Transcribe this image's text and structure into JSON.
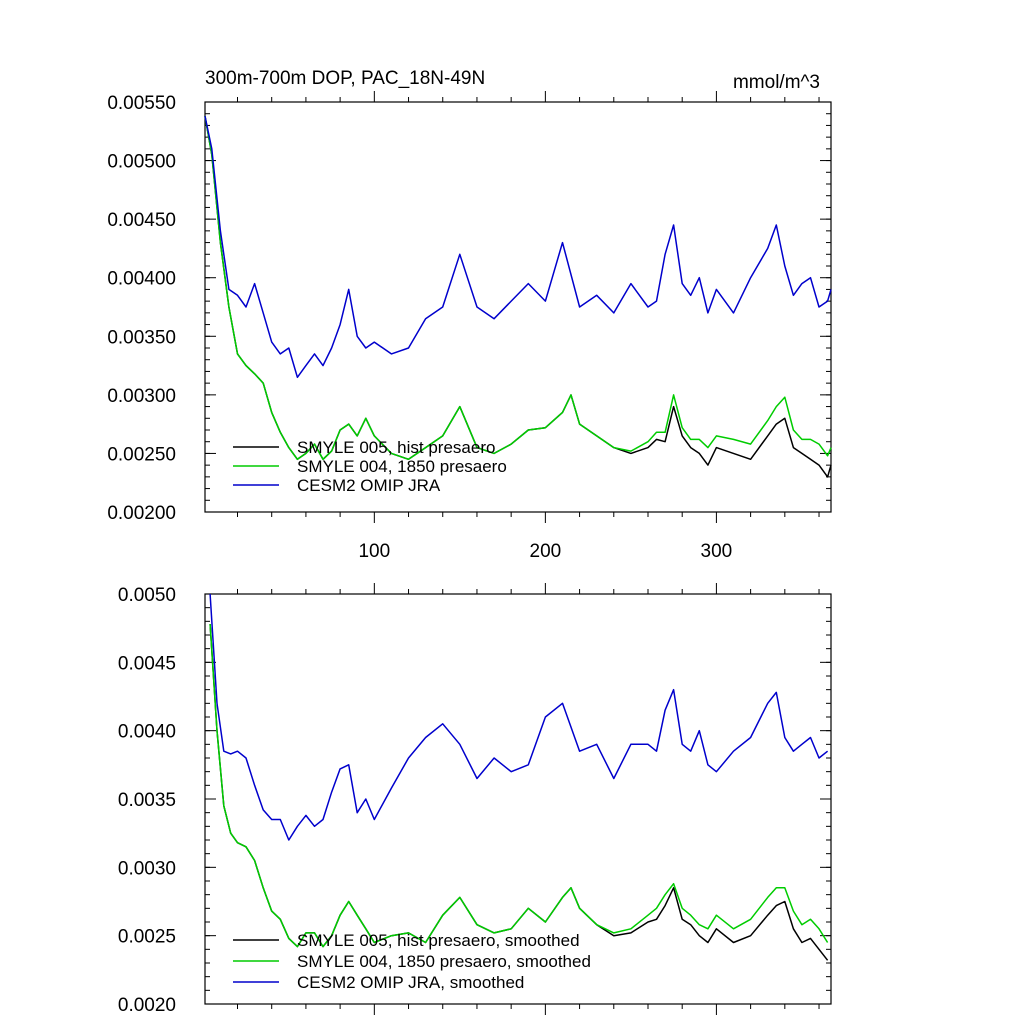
{
  "chart_data": [
    {
      "type": "line",
      "title": "300m-700m DOP, PAC_18N-49N",
      "units_label": "mmol/m^3",
      "xlim": [
        1,
        367
      ],
      "ylim": [
        0.002,
        0.0055
      ],
      "xticks": [
        100,
        200,
        300
      ],
      "xtick_labels": [
        "100",
        "200",
        "300"
      ],
      "yticks": [
        0.002,
        0.0025,
        0.003,
        0.0035,
        0.004,
        0.0045,
        0.005,
        0.0055
      ],
      "ytick_labels": [
        "0.00200",
        "0.00250",
        "0.00300",
        "0.00350",
        "0.00400",
        "0.00450",
        "0.00500",
        "0.00550"
      ],
      "grid": false,
      "legend_position": "bottom-left",
      "series": [
        {
          "name": "SMYLE 005, hist presaero",
          "color": "#000000",
          "x": [
            1,
            5,
            10,
            15,
            20,
            25,
            30,
            35,
            40,
            45,
            50,
            55,
            60,
            65,
            70,
            75,
            80,
            85,
            90,
            95,
            100,
            110,
            120,
            130,
            140,
            150,
            160,
            170,
            180,
            190,
            200,
            210,
            215,
            220,
            230,
            240,
            250,
            260,
            265,
            270,
            275,
            280,
            285,
            290,
            295,
            300,
            310,
            320,
            330,
            335,
            340,
            345,
            350,
            355,
            360,
            365,
            367
          ],
          "values": [
            0.00538,
            0.00505,
            0.0043,
            0.00375,
            0.00335,
            0.00325,
            0.00318,
            0.0031,
            0.00285,
            0.00268,
            0.00255,
            0.00245,
            0.0025,
            0.00258,
            0.00245,
            0.00252,
            0.0027,
            0.00275,
            0.00265,
            0.0028,
            0.00265,
            0.0025,
            0.00245,
            0.00255,
            0.00265,
            0.0029,
            0.00255,
            0.0025,
            0.00258,
            0.0027,
            0.00272,
            0.00285,
            0.003,
            0.00275,
            0.00265,
            0.00255,
            0.0025,
            0.00255,
            0.00262,
            0.0026,
            0.0029,
            0.00265,
            0.00255,
            0.0025,
            0.0024,
            0.00255,
            0.0025,
            0.00245,
            0.00265,
            0.00275,
            0.0028,
            0.00255,
            0.0025,
            0.00245,
            0.0024,
            0.0023,
            0.0024
          ]
        },
        {
          "name": "SMYLE 004, 1850 presaero",
          "color": "#00cc00",
          "x": [
            1,
            5,
            10,
            15,
            20,
            25,
            30,
            35,
            40,
            45,
            50,
            55,
            60,
            65,
            70,
            75,
            80,
            85,
            90,
            95,
            100,
            110,
            120,
            130,
            140,
            150,
            160,
            170,
            180,
            190,
            200,
            210,
            215,
            220,
            230,
            240,
            250,
            260,
            265,
            270,
            275,
            280,
            285,
            290,
            295,
            300,
            310,
            320,
            330,
            335,
            340,
            345,
            350,
            355,
            360,
            365,
            367
          ],
          "values": [
            0.00538,
            0.00505,
            0.0043,
            0.00375,
            0.00335,
            0.00325,
            0.00318,
            0.0031,
            0.00285,
            0.00268,
            0.00255,
            0.00245,
            0.0025,
            0.00258,
            0.00245,
            0.00252,
            0.0027,
            0.00275,
            0.00265,
            0.0028,
            0.00265,
            0.0025,
            0.00245,
            0.00255,
            0.00265,
            0.0029,
            0.00255,
            0.0025,
            0.00258,
            0.0027,
            0.00272,
            0.00285,
            0.003,
            0.00275,
            0.00265,
            0.00255,
            0.00252,
            0.0026,
            0.00268,
            0.00268,
            0.003,
            0.00272,
            0.00262,
            0.00262,
            0.00255,
            0.00265,
            0.00262,
            0.00258,
            0.00278,
            0.0029,
            0.00298,
            0.0027,
            0.00262,
            0.00262,
            0.00258,
            0.00248,
            0.00255
          ]
        },
        {
          "name": "CESM2 OMIP JRA",
          "color": "#0000cc",
          "x": [
            1,
            5,
            10,
            15,
            20,
            25,
            30,
            35,
            40,
            45,
            50,
            55,
            60,
            65,
            70,
            75,
            80,
            85,
            90,
            95,
            100,
            110,
            120,
            130,
            140,
            150,
            160,
            170,
            180,
            190,
            200,
            210,
            220,
            230,
            240,
            250,
            260,
            265,
            270,
            275,
            280,
            285,
            290,
            295,
            300,
            310,
            320,
            330,
            335,
            340,
            345,
            350,
            355,
            360,
            365,
            367
          ],
          "values": [
            0.00538,
            0.0051,
            0.0044,
            0.0039,
            0.00385,
            0.00375,
            0.00395,
            0.0037,
            0.00345,
            0.00335,
            0.0034,
            0.00315,
            0.00325,
            0.00335,
            0.00325,
            0.0034,
            0.0036,
            0.0039,
            0.0035,
            0.0034,
            0.00345,
            0.00335,
            0.0034,
            0.00365,
            0.00375,
            0.0042,
            0.00375,
            0.00365,
            0.0038,
            0.00395,
            0.0038,
            0.0043,
            0.00375,
            0.00385,
            0.0037,
            0.00395,
            0.00375,
            0.0038,
            0.0042,
            0.00445,
            0.00395,
            0.00385,
            0.004,
            0.0037,
            0.0039,
            0.0037,
            0.004,
            0.00425,
            0.00445,
            0.0041,
            0.00385,
            0.00395,
            0.004,
            0.00375,
            0.0038,
            0.0039
          ]
        }
      ]
    },
    {
      "type": "line",
      "title": "",
      "xlim": [
        1,
        367
      ],
      "ylim": [
        0.002,
        0.005
      ],
      "xticks": [
        100,
        200,
        300
      ],
      "xtick_labels": [
        "",
        "",
        ""
      ],
      "yticks": [
        0.002,
        0.0025,
        0.003,
        0.0035,
        0.004,
        0.0045,
        0.005
      ],
      "ytick_labels": [
        "0.0020",
        "0.0025",
        "0.0030",
        "0.0035",
        "0.0040",
        "0.0045",
        "0.0050"
      ],
      "grid": false,
      "legend_position": "bottom-left",
      "series": [
        {
          "name": "SMYLE 005, hist presaero, smoothed",
          "color": "#000000",
          "x": [
            4,
            8,
            12,
            16,
            20,
            25,
            30,
            35,
            40,
            45,
            50,
            55,
            60,
            65,
            70,
            75,
            80,
            85,
            90,
            95,
            100,
            110,
            120,
            130,
            140,
            150,
            160,
            170,
            180,
            190,
            200,
            210,
            215,
            220,
            230,
            240,
            250,
            260,
            265,
            270,
            275,
            280,
            285,
            290,
            295,
            300,
            310,
            320,
            330,
            335,
            340,
            345,
            350,
            355,
            360,
            365
          ],
          "values": [
            0.00478,
            0.004,
            0.00345,
            0.00325,
            0.00318,
            0.00315,
            0.00305,
            0.00285,
            0.00268,
            0.00262,
            0.00248,
            0.00242,
            0.00252,
            0.00252,
            0.00242,
            0.0025,
            0.00265,
            0.00275,
            0.00265,
            0.00255,
            0.00245,
            0.0025,
            0.00252,
            0.00245,
            0.00265,
            0.00278,
            0.00258,
            0.00252,
            0.00255,
            0.0027,
            0.0026,
            0.00278,
            0.00285,
            0.0027,
            0.00258,
            0.0025,
            0.00252,
            0.0026,
            0.00262,
            0.00272,
            0.00285,
            0.00262,
            0.00258,
            0.0025,
            0.00245,
            0.00255,
            0.00245,
            0.0025,
            0.00265,
            0.00272,
            0.00275,
            0.00255,
            0.00245,
            0.00248,
            0.0024,
            0.00232
          ]
        },
        {
          "name": "SMYLE 004, 1850 presaero, smoothed",
          "color": "#00cc00",
          "x": [
            4,
            8,
            12,
            16,
            20,
            25,
            30,
            35,
            40,
            45,
            50,
            55,
            60,
            65,
            70,
            75,
            80,
            85,
            90,
            95,
            100,
            110,
            120,
            130,
            140,
            150,
            160,
            170,
            180,
            190,
            200,
            210,
            215,
            220,
            230,
            240,
            250,
            260,
            265,
            270,
            275,
            280,
            285,
            290,
            295,
            300,
            310,
            320,
            330,
            335,
            340,
            345,
            350,
            355,
            360,
            365
          ],
          "values": [
            0.00478,
            0.004,
            0.00345,
            0.00325,
            0.00318,
            0.00315,
            0.00305,
            0.00285,
            0.00268,
            0.00262,
            0.00248,
            0.00242,
            0.00252,
            0.00252,
            0.00242,
            0.0025,
            0.00265,
            0.00275,
            0.00265,
            0.00255,
            0.00245,
            0.0025,
            0.00252,
            0.00245,
            0.00265,
            0.00278,
            0.00258,
            0.00252,
            0.00255,
            0.0027,
            0.0026,
            0.00278,
            0.00285,
            0.0027,
            0.00258,
            0.00252,
            0.00255,
            0.00265,
            0.0027,
            0.0028,
            0.00288,
            0.0027,
            0.00265,
            0.00258,
            0.00255,
            0.00265,
            0.00255,
            0.00262,
            0.00278,
            0.00285,
            0.00285,
            0.00268,
            0.00258,
            0.00262,
            0.00255,
            0.00245
          ]
        },
        {
          "name": "CESM2 OMIP JRA, smoothed",
          "color": "#0000cc",
          "x": [
            4,
            8,
            12,
            16,
            20,
            25,
            30,
            35,
            40,
            45,
            50,
            55,
            60,
            65,
            70,
            75,
            80,
            85,
            90,
            95,
            100,
            110,
            120,
            130,
            140,
            150,
            160,
            170,
            180,
            190,
            200,
            210,
            220,
            230,
            240,
            250,
            260,
            265,
            270,
            275,
            280,
            285,
            290,
            295,
            300,
            310,
            320,
            330,
            335,
            340,
            345,
            350,
            355,
            360,
            365
          ],
          "values": [
            0.005,
            0.0042,
            0.00385,
            0.00383,
            0.00385,
            0.0038,
            0.0036,
            0.00342,
            0.00335,
            0.00335,
            0.0032,
            0.0033,
            0.00338,
            0.0033,
            0.00335,
            0.00355,
            0.00372,
            0.00375,
            0.0034,
            0.0035,
            0.00335,
            0.00358,
            0.0038,
            0.00395,
            0.00405,
            0.0039,
            0.00365,
            0.0038,
            0.0037,
            0.00375,
            0.0041,
            0.0042,
            0.00385,
            0.0039,
            0.00365,
            0.0039,
            0.0039,
            0.00385,
            0.00415,
            0.0043,
            0.0039,
            0.00385,
            0.004,
            0.00375,
            0.0037,
            0.00385,
            0.00395,
            0.0042,
            0.00428,
            0.00395,
            0.00385,
            0.0039,
            0.00395,
            0.0038,
            0.00385
          ]
        }
      ]
    }
  ]
}
